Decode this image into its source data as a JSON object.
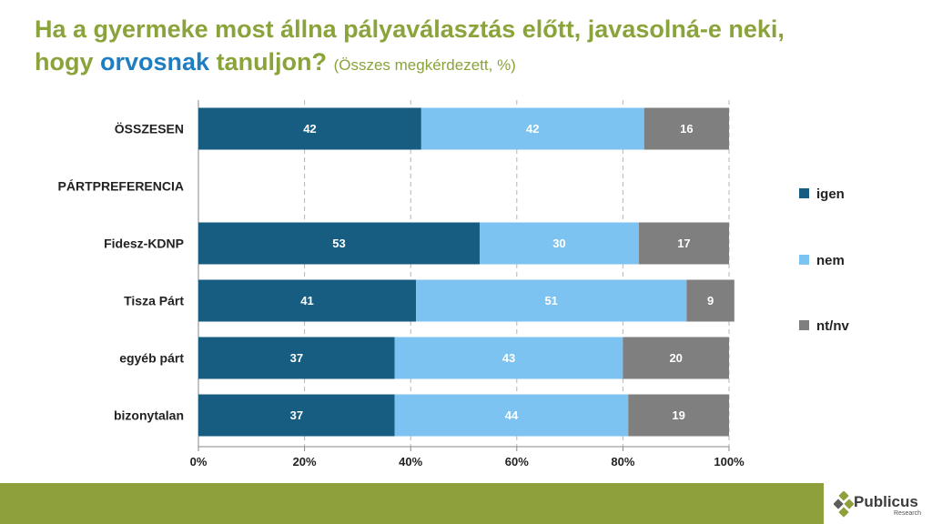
{
  "title": {
    "line1": "Ha a gyermeke most állna pályaválasztás előtt, javasolná-e neki,",
    "line2_pre": "hogy ",
    "line2_highlight": "orvosnak",
    "line2_post": " tanuljon?",
    "subtitle": "(Összes megkérdezett, %)"
  },
  "chart_data": {
    "type": "bar",
    "orientation": "horizontal",
    "stacked": true,
    "categories": [
      "ÖSSZESEN",
      "PÁRTPREFERENCIA",
      "Fidesz-KDNP",
      "Tisza Párt",
      "egyéb párt",
      "bizonytalan"
    ],
    "series": [
      {
        "name": "igen",
        "color": "#175d82",
        "values": [
          42,
          null,
          53,
          41,
          37,
          37
        ]
      },
      {
        "name": "nem",
        "color": "#7cc3f2",
        "values": [
          42,
          null,
          30,
          51,
          43,
          44
        ]
      },
      {
        "name": "nt/nv",
        "color": "#7f7f7f",
        "values": [
          16,
          null,
          17,
          9,
          20,
          19
        ]
      }
    ],
    "xlim": [
      0,
      100
    ],
    "xticks": [
      "0%",
      "20%",
      "40%",
      "60%",
      "80%",
      "100%"
    ],
    "grid": "vertical dashed",
    "legend_position": "right"
  },
  "logo": {
    "name": "Publicus",
    "sub": "Research"
  }
}
